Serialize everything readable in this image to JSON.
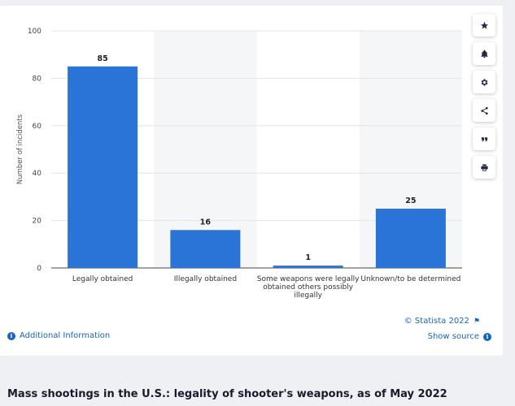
{
  "chart_data": {
    "type": "bar",
    "categories": [
      "Legally obtained",
      "Illegally obtained",
      "Some weapons were legally obtained others possibly illegally",
      "Unknown/to be determined"
    ],
    "category_lines": [
      [
        "Legally obtained"
      ],
      [
        "Illegally obtained"
      ],
      [
        "Some weapons were legally",
        "obtained others possibly",
        "illegally"
      ],
      [
        "Unknown/to be determined"
      ]
    ],
    "values": [
      85,
      16,
      1,
      25
    ],
    "ylabel": "Number of incidents",
    "ylim": [
      0,
      100
    ],
    "yticks": [
      0,
      20,
      40,
      60,
      80,
      100
    ],
    "grid": true,
    "bar_color": "#2a74d8",
    "alt_band_color": "#f5f6f8"
  },
  "credit": "© Statista 2022",
  "additional_info": "Additional Information",
  "show_source": "Show source",
  "caption": "Mass shootings in the U.S.: legality of shooter's weapons, as of May 2022",
  "toolbar": [
    {
      "name": "star-icon"
    },
    {
      "name": "bell-icon"
    },
    {
      "name": "gear-icon"
    },
    {
      "name": "share-icon"
    },
    {
      "name": "quote-icon"
    },
    {
      "name": "print-icon"
    }
  ]
}
